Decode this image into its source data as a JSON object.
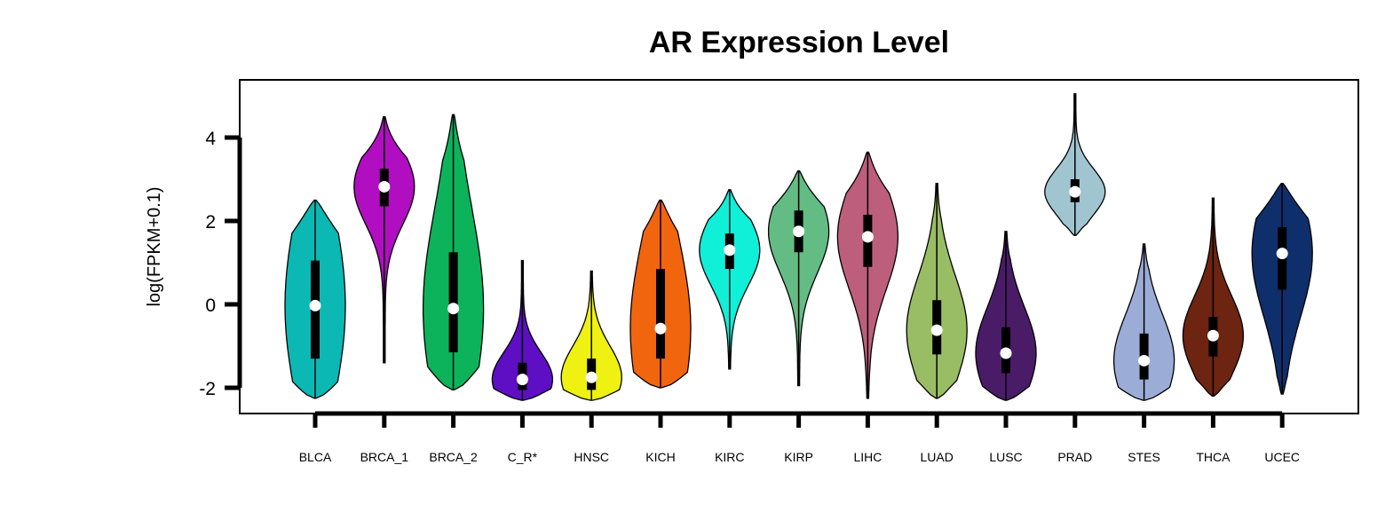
{
  "chart_data": {
    "type": "violin",
    "title": "AR Expression Level",
    "xlabel": "",
    "ylabel": "log(FPKM+0.1)",
    "ylim": [
      -2.6,
      5.4
    ],
    "yticks": [
      -2,
      0,
      2,
      4
    ],
    "grid": false,
    "legend": "none",
    "categories": [
      "BLCA",
      "BRCA_1",
      "BRCA_2",
      "C_R*",
      "HNSC",
      "KICH",
      "KIRC",
      "KIRP",
      "LIHC",
      "LUAD",
      "LUSC",
      "PRAD",
      "STES",
      "THCA",
      "UCEC"
    ],
    "colors": [
      "#0BB8B3",
      "#B00EC0",
      "#0DB35A",
      "#5E0EC3",
      "#EEF111",
      "#F2650F",
      "#10EFD8",
      "#64BC85",
      "#BD5F7C",
      "#99BD64",
      "#4A1C67",
      "#A0C5D1",
      "#9BACD7",
      "#6D2410",
      "#0E2F6B"
    ],
    "series": [
      {
        "category": "BLCA",
        "min": -2.25,
        "q1": -1.3,
        "median": -0.03,
        "q3": 1.05,
        "max": 2.5
      },
      {
        "category": "BRCA_1",
        "min": -1.4,
        "q1": 2.35,
        "median": 2.82,
        "q3": 3.25,
        "max": 4.5
      },
      {
        "category": "BRCA_2",
        "min": -2.05,
        "q1": -1.15,
        "median": -0.1,
        "q3": 1.25,
        "max": 4.55
      },
      {
        "category": "C_R*",
        "min": -2.3,
        "q1": -2.05,
        "median": -1.8,
        "q3": -1.4,
        "max": 1.05
      },
      {
        "category": "HNSC",
        "min": -2.3,
        "q1": -2.05,
        "median": -1.75,
        "q3": -1.3,
        "max": 0.8
      },
      {
        "category": "KICH",
        "min": -2.0,
        "q1": -1.3,
        "median": -0.58,
        "q3": 0.85,
        "max": 2.5
      },
      {
        "category": "KIRC",
        "min": -1.55,
        "q1": 0.85,
        "median": 1.3,
        "q3": 1.7,
        "max": 2.75
      },
      {
        "category": "KIRP",
        "min": -1.95,
        "q1": 1.25,
        "median": 1.75,
        "q3": 2.25,
        "max": 3.2
      },
      {
        "category": "LIHC",
        "min": -2.25,
        "q1": 0.9,
        "median": 1.62,
        "q3": 2.15,
        "max": 3.65
      },
      {
        "category": "LUAD",
        "min": -2.25,
        "q1": -1.2,
        "median": -0.62,
        "q3": 0.1,
        "max": 2.9
      },
      {
        "category": "LUSC",
        "min": -2.3,
        "q1": -1.65,
        "median": -1.17,
        "q3": -0.55,
        "max": 1.75
      },
      {
        "category": "PRAD",
        "min": 1.65,
        "q1": 2.45,
        "median": 2.7,
        "q3": 3.0,
        "max": 5.05
      },
      {
        "category": "STES",
        "min": -2.3,
        "q1": -1.8,
        "median": -1.35,
        "q3": -0.7,
        "max": 1.45
      },
      {
        "category": "THCA",
        "min": -2.2,
        "q1": -1.25,
        "median": -0.75,
        "q3": -0.3,
        "max": 2.55
      },
      {
        "category": "UCEC",
        "min": -2.15,
        "q1": 0.35,
        "median": 1.22,
        "q3": 1.85,
        "max": 2.9
      }
    ]
  }
}
